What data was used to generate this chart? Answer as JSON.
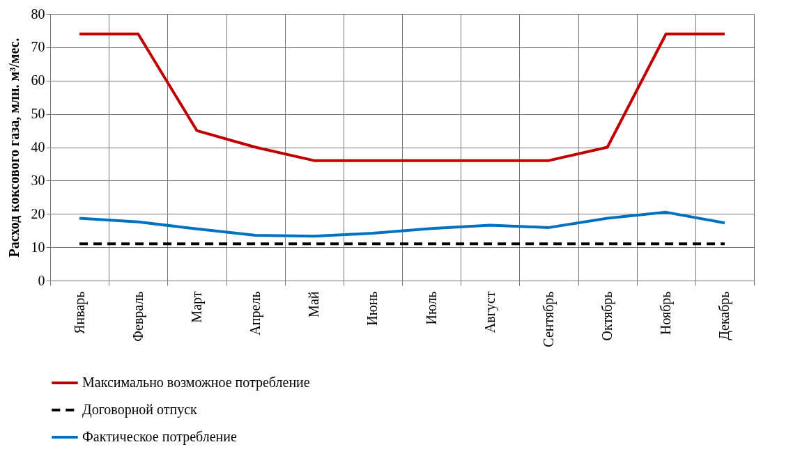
{
  "chart_data": {
    "type": "line",
    "ylabel": "Расход коксового газа, млн. м³/мес.",
    "categories": [
      "Январь",
      "Февраль",
      "Март",
      "Апрель",
      "Май",
      "Июнь",
      "Июль",
      "Август",
      "Сентябрь",
      "Октябрь",
      "Ноябрь",
      "Декабрь"
    ],
    "series": [
      {
        "name": "Максимально возможное потребление",
        "color": "#c00000",
        "line_style": "solid",
        "values": [
          74,
          74,
          45,
          40,
          36,
          36,
          36,
          36,
          36,
          40,
          74,
          74
        ]
      },
      {
        "name": "Договорной отпуск",
        "color": "#000000",
        "line_style": "dashed",
        "values": [
          11,
          11,
          11,
          11,
          11,
          11,
          11,
          11,
          11,
          11,
          11,
          11
        ]
      },
      {
        "name": "Фактическое потребление",
        "color": "#0070c0",
        "line_style": "solid",
        "values": [
          18.7,
          17.6,
          15.5,
          13.6,
          13.3,
          14.2,
          15.6,
          16.6,
          15.9,
          18.7,
          20.5,
          17.3
        ]
      }
    ],
    "ylim": [
      0,
      80
    ],
    "yticks": [
      0,
      10,
      20,
      30,
      40,
      50,
      60,
      70,
      80
    ],
    "grid": true,
    "legend": "bottom",
    "marker": "none"
  }
}
